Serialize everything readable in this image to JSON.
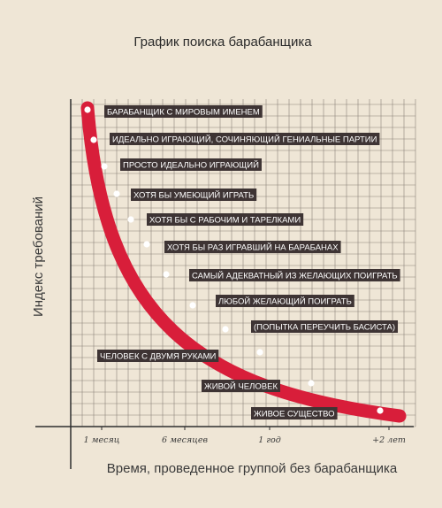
{
  "chart_data": {
    "type": "line",
    "title": "График поиска барабанщика",
    "xlabel": "Время, проведенное группой без барабанщика",
    "ylabel": "Индекс требований",
    "x_ticks": [
      "1 месяц",
      "6 месяцев",
      "1 год",
      "+2 лет"
    ],
    "grid": true,
    "curve_color": "#d81e3a",
    "label_bg": "#3e3434",
    "points": [
      {
        "label": "БАРАБАНЩИК С МИРОВЫМ ИМЕНЕМ"
      },
      {
        "label": "ИДЕАЛЬНО ИГРАЮЩИЙ, СОЧИНЯЮЩИЙ ГЕНИАЛЬНЫЕ ПАРТИИ"
      },
      {
        "label": "ПРОСТО ИДЕАЛЬНО ИГРАЮЩИЙ"
      },
      {
        "label": "ХОТЯ БЫ УМЕЮЩИЙ ИГРАТЬ"
      },
      {
        "label": "ХОТЯ БЫ С РАБОЧИМ И ТАРЕЛКАМИ"
      },
      {
        "label": "ХОТЯ БЫ РАЗ ИГРАВШИЙ НА БАРАБАНАХ"
      },
      {
        "label": "САМЫЙ АДЕКВАТНЫЙ ИЗ ЖЕЛАЮЩИХ ПОИГРАТЬ"
      },
      {
        "label": "ЛЮБОЙ ЖЕЛАЮЩИЙ ПОИГРАТЬ"
      },
      {
        "label": "(ПОПЫТКА ПЕРЕУЧИТЬ БАСИСТА)"
      },
      {
        "label": "ЧЕЛОВЕК С ДВУМЯ РУКАМИ"
      },
      {
        "label": "ЖИВОЙ ЧЕЛОВЕК"
      },
      {
        "label": "ЖИВОЕ СУЩЕСТВО"
      }
    ]
  }
}
